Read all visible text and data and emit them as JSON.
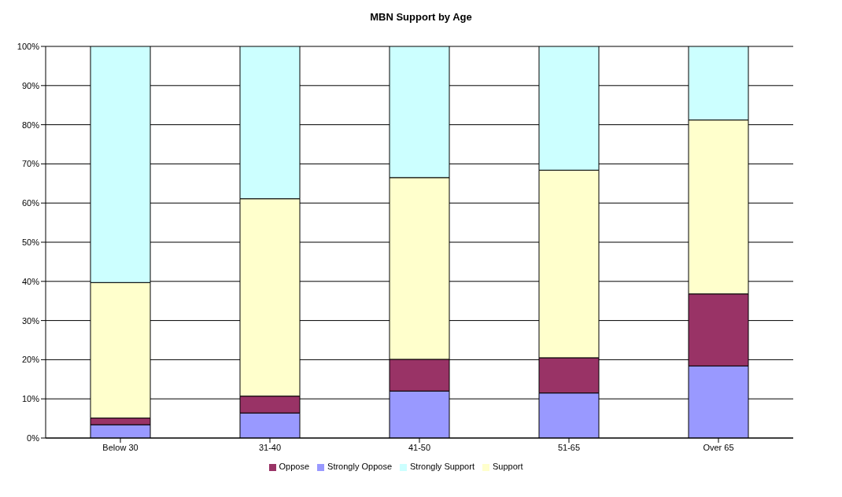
{
  "chart_data": {
    "type": "bar",
    "title": "MBN Support by Age",
    "stacked": true,
    "categories": [
      "Below 30",
      "31-40",
      "41-50",
      "51-65",
      "Over 65"
    ],
    "series": [
      {
        "name": "Strongly Oppose",
        "color": "#9999ff",
        "values": [
          3.4,
          6.4,
          12,
          11.5,
          18.4
        ]
      },
      {
        "name": "Oppose",
        "color": "#993366",
        "values": [
          1.7,
          4.3,
          8.1,
          9,
          18.4
        ]
      },
      {
        "name": "Support",
        "color": "#ffffcc",
        "values": [
          34.6,
          50.4,
          46.4,
          47.9,
          44.4
        ]
      },
      {
        "name": "Strongly Support",
        "color": "#ccffff",
        "values": [
          60.3,
          38.9,
          33.5,
          31.6,
          18.8
        ]
      }
    ],
    "ylim": [
      0,
      100
    ],
    "yticks": [
      {
        "value": 0,
        "label": "0%"
      },
      {
        "value": 10,
        "label": "10%"
      },
      {
        "value": 20,
        "label": "20%"
      },
      {
        "value": 30,
        "label": "30%"
      },
      {
        "value": 40,
        "label": "40%"
      },
      {
        "value": 50,
        "label": "50%"
      },
      {
        "value": 60,
        "label": "60%"
      },
      {
        "value": 70,
        "label": "70%"
      },
      {
        "value": 80,
        "label": "80%"
      },
      {
        "value": 90,
        "label": "90%"
      },
      {
        "value": 100,
        "label": "100%"
      }
    ],
    "grid": "y",
    "legend": "bottom"
  }
}
